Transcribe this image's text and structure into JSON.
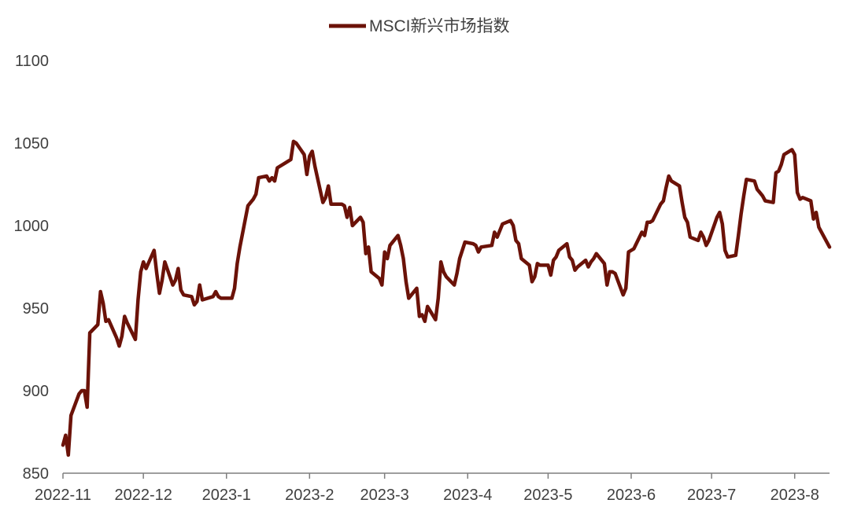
{
  "chart_data": {
    "type": "line",
    "legend": {
      "label": "MSCI新兴市场指数",
      "position": "top-center"
    },
    "series": [
      {
        "name": "MSCI新兴市场指数",
        "color": "#6b1208"
      }
    ],
    "ylim": [
      850,
      1100
    ],
    "yticks": [
      "850",
      "900",
      "950",
      "1000",
      "1050",
      "1100"
    ],
    "xticks": [
      "2022-11",
      "2022-12",
      "2023-1",
      "2023-2",
      "2023-3",
      "2023-4",
      "2023-5",
      "2023-6",
      "2023-7",
      "2023-8"
    ],
    "grid": false,
    "points": [
      [
        "2022-11-01",
        867
      ],
      [
        "2022-11-02",
        873
      ],
      [
        "2022-11-03",
        861
      ],
      [
        "2022-11-04",
        885
      ],
      [
        "2022-11-07",
        898
      ],
      [
        "2022-11-08",
        900
      ],
      [
        "2022-11-09",
        900
      ],
      [
        "2022-11-10",
        890
      ],
      [
        "2022-11-11",
        935
      ],
      [
        "2022-11-14",
        940
      ],
      [
        "2022-11-15",
        960
      ],
      [
        "2022-11-16",
        953
      ],
      [
        "2022-11-17",
        942
      ],
      [
        "2022-11-18",
        943
      ],
      [
        "2022-11-21",
        932
      ],
      [
        "2022-11-22",
        927
      ],
      [
        "2022-11-23",
        933
      ],
      [
        "2022-11-24",
        945
      ],
      [
        "2022-11-25",
        941
      ],
      [
        "2022-11-28",
        931
      ],
      [
        "2022-11-29",
        955
      ],
      [
        "2022-11-30",
        972
      ],
      [
        "2022-12-01",
        978
      ],
      [
        "2022-12-02",
        974
      ],
      [
        "2022-12-05",
        985
      ],
      [
        "2022-12-06",
        971
      ],
      [
        "2022-12-07",
        959
      ],
      [
        "2022-12-08",
        967
      ],
      [
        "2022-12-09",
        978
      ],
      [
        "2022-12-12",
        964
      ],
      [
        "2022-12-13",
        967
      ],
      [
        "2022-12-14",
        974
      ],
      [
        "2022-12-15",
        961
      ],
      [
        "2022-12-16",
        958
      ],
      [
        "2022-12-19",
        957
      ],
      [
        "2022-12-20",
        952
      ],
      [
        "2022-12-21",
        954
      ],
      [
        "2022-12-22",
        964
      ],
      [
        "2022-12-23",
        955
      ],
      [
        "2022-12-27",
        957
      ],
      [
        "2022-12-28",
        960
      ],
      [
        "2022-12-29",
        957
      ],
      [
        "2022-12-30",
        956
      ],
      [
        "2023-01-03",
        956
      ],
      [
        "2023-01-04",
        962
      ],
      [
        "2023-01-05",
        977
      ],
      [
        "2023-01-06",
        987
      ],
      [
        "2023-01-09",
        1012
      ],
      [
        "2023-01-10",
        1014
      ],
      [
        "2023-01-11",
        1016
      ],
      [
        "2023-01-12",
        1019
      ],
      [
        "2023-01-13",
        1029
      ],
      [
        "2023-01-16",
        1030
      ],
      [
        "2023-01-17",
        1027
      ],
      [
        "2023-01-18",
        1029
      ],
      [
        "2023-01-19",
        1027
      ],
      [
        "2023-01-20",
        1035
      ],
      [
        "2023-01-23",
        1038
      ],
      [
        "2023-01-24",
        1039
      ],
      [
        "2023-01-25",
        1040
      ],
      [
        "2023-01-26",
        1051
      ],
      [
        "2023-01-27",
        1050
      ],
      [
        "2023-01-30",
        1043
      ],
      [
        "2023-01-31",
        1031
      ],
      [
        "2023-02-01",
        1042
      ],
      [
        "2023-02-02",
        1045
      ],
      [
        "2023-02-03",
        1036
      ],
      [
        "2023-02-06",
        1014
      ],
      [
        "2023-02-07",
        1017
      ],
      [
        "2023-02-08",
        1024
      ],
      [
        "2023-02-09",
        1013
      ],
      [
        "2023-02-13",
        1013
      ],
      [
        "2023-02-14",
        1012
      ],
      [
        "2023-02-15",
        1005
      ],
      [
        "2023-02-16",
        1011
      ],
      [
        "2023-02-17",
        1000
      ],
      [
        "2023-02-20",
        1005
      ],
      [
        "2023-02-21",
        1002
      ],
      [
        "2023-02-22",
        983
      ],
      [
        "2023-02-23",
        987
      ],
      [
        "2023-02-24",
        972
      ],
      [
        "2023-02-27",
        968
      ],
      [
        "2023-02-28",
        964
      ],
      [
        "2023-03-01",
        984
      ],
      [
        "2023-03-02",
        980
      ],
      [
        "2023-03-03",
        988
      ],
      [
        "2023-03-06",
        994
      ],
      [
        "2023-03-07",
        988
      ],
      [
        "2023-03-08",
        980
      ],
      [
        "2023-03-09",
        966
      ],
      [
        "2023-03-10",
        956
      ],
      [
        "2023-03-13",
        962
      ],
      [
        "2023-03-14",
        945
      ],
      [
        "2023-03-15",
        946
      ],
      [
        "2023-03-16",
        942
      ],
      [
        "2023-03-17",
        951
      ],
      [
        "2023-03-20",
        943
      ],
      [
        "2023-03-21",
        956
      ],
      [
        "2023-03-22",
        978
      ],
      [
        "2023-03-23",
        972
      ],
      [
        "2023-03-24",
        969
      ],
      [
        "2023-03-27",
        964
      ],
      [
        "2023-03-28",
        971
      ],
      [
        "2023-03-29",
        980
      ],
      [
        "2023-03-30",
        985
      ],
      [
        "2023-03-31",
        990
      ],
      [
        "2023-04-03",
        989
      ],
      [
        "2023-04-04",
        988
      ],
      [
        "2023-04-05",
        984
      ],
      [
        "2023-04-06",
        987
      ],
      [
        "2023-04-10",
        988
      ],
      [
        "2023-04-11",
        996
      ],
      [
        "2023-04-12",
        993
      ],
      [
        "2023-04-13",
        997
      ],
      [
        "2023-04-14",
        1001
      ],
      [
        "2023-04-17",
        1003
      ],
      [
        "2023-04-18",
        1000
      ],
      [
        "2023-04-19",
        991
      ],
      [
        "2023-04-20",
        989
      ],
      [
        "2023-04-21",
        980
      ],
      [
        "2023-04-24",
        976
      ],
      [
        "2023-04-25",
        966
      ],
      [
        "2023-04-26",
        969
      ],
      [
        "2023-04-27",
        977
      ],
      [
        "2023-04-28",
        976
      ],
      [
        "2023-05-01",
        976
      ],
      [
        "2023-05-02",
        970
      ],
      [
        "2023-05-03",
        979
      ],
      [
        "2023-05-04",
        981
      ],
      [
        "2023-05-05",
        985
      ],
      [
        "2023-05-08",
        989
      ],
      [
        "2023-05-09",
        981
      ],
      [
        "2023-05-10",
        979
      ],
      [
        "2023-05-11",
        973
      ],
      [
        "2023-05-12",
        975
      ],
      [
        "2023-05-15",
        979
      ],
      [
        "2023-05-16",
        975
      ],
      [
        "2023-05-17",
        978
      ],
      [
        "2023-05-18",
        980
      ],
      [
        "2023-05-19",
        983
      ],
      [
        "2023-05-22",
        977
      ],
      [
        "2023-05-23",
        964
      ],
      [
        "2023-05-24",
        972
      ],
      [
        "2023-05-25",
        972
      ],
      [
        "2023-05-26",
        971
      ],
      [
        "2023-05-29",
        958
      ],
      [
        "2023-05-30",
        962
      ],
      [
        "2023-05-31",
        984
      ],
      [
        "2023-06-01",
        985
      ],
      [
        "2023-06-02",
        986
      ],
      [
        "2023-06-05",
        996
      ],
      [
        "2023-06-06",
        994
      ],
      [
        "2023-06-07",
        1002
      ],
      [
        "2023-06-08",
        1002
      ],
      [
        "2023-06-09",
        1003
      ],
      [
        "2023-06-12",
        1013
      ],
      [
        "2023-06-13",
        1015
      ],
      [
        "2023-06-14",
        1023
      ],
      [
        "2023-06-15",
        1030
      ],
      [
        "2023-06-16",
        1027
      ],
      [
        "2023-06-19",
        1024
      ],
      [
        "2023-06-20",
        1014
      ],
      [
        "2023-06-21",
        1005
      ],
      [
        "2023-06-22",
        1002
      ],
      [
        "2023-06-23",
        993
      ],
      [
        "2023-06-26",
        991
      ],
      [
        "2023-06-27",
        996
      ],
      [
        "2023-06-28",
        993
      ],
      [
        "2023-06-29",
        988
      ],
      [
        "2023-06-30",
        991
      ],
      [
        "2023-07-03",
        1005
      ],
      [
        "2023-07-04",
        1008
      ],
      [
        "2023-07-05",
        1001
      ],
      [
        "2023-07-06",
        985
      ],
      [
        "2023-07-07",
        981
      ],
      [
        "2023-07-10",
        982
      ],
      [
        "2023-07-11",
        994
      ],
      [
        "2023-07-12",
        1007
      ],
      [
        "2023-07-13",
        1018
      ],
      [
        "2023-07-14",
        1028
      ],
      [
        "2023-07-17",
        1027
      ],
      [
        "2023-07-18",
        1022
      ],
      [
        "2023-07-19",
        1020
      ],
      [
        "2023-07-20",
        1018
      ],
      [
        "2023-07-21",
        1015
      ],
      [
        "2023-07-24",
        1014
      ],
      [
        "2023-07-25",
        1032
      ],
      [
        "2023-07-26",
        1033
      ],
      [
        "2023-07-27",
        1037
      ],
      [
        "2023-07-28",
        1043
      ],
      [
        "2023-07-31",
        1046
      ],
      [
        "2023-08-01",
        1043
      ],
      [
        "2023-08-02",
        1020
      ],
      [
        "2023-08-03",
        1016
      ],
      [
        "2023-08-04",
        1017
      ],
      [
        "2023-08-07",
        1015
      ],
      [
        "2023-08-08",
        1004
      ],
      [
        "2023-08-09",
        1008
      ],
      [
        "2023-08-10",
        999
      ],
      [
        "2023-08-11",
        996
      ],
      [
        "2023-08-14",
        987
      ]
    ]
  }
}
